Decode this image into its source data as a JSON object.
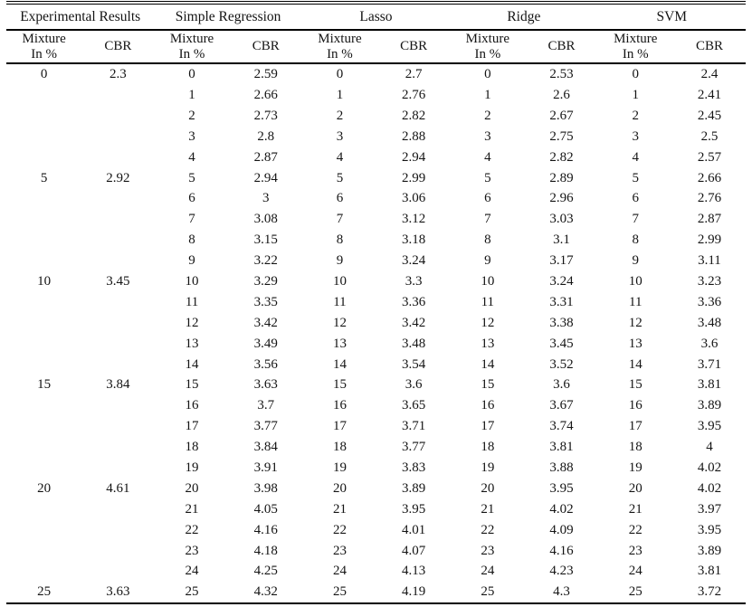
{
  "table": {
    "groups": [
      {
        "label": "Experimental Results"
      },
      {
        "label": "Simple Regression"
      },
      {
        "label": "Lasso"
      },
      {
        "label": "Ridge"
      },
      {
        "label": "SVM"
      }
    ],
    "subheader": {
      "mixture": "Mixture\nIn %",
      "cbr": "CBR"
    },
    "column_keys": [
      "experimental-mixture",
      "experimental-cbr",
      "simple-regression-mixture",
      "simple-regression-cbr",
      "lasso-mixture",
      "lasso-cbr",
      "ridge-mixture",
      "ridge-cbr",
      "svm-mixture",
      "svm-cbr"
    ],
    "rows": [
      [
        "0",
        "2.3",
        "0",
        "2.59",
        "0",
        "2.7",
        "0",
        "2.53",
        "0",
        "2.4"
      ],
      [
        "",
        "",
        "1",
        "2.66",
        "1",
        "2.76",
        "1",
        "2.6",
        "1",
        "2.41"
      ],
      [
        "",
        "",
        "2",
        "2.73",
        "2",
        "2.82",
        "2",
        "2.67",
        "2",
        "2.45"
      ],
      [
        "",
        "",
        "3",
        "2.8",
        "3",
        "2.88",
        "3",
        "2.75",
        "3",
        "2.5"
      ],
      [
        "",
        "",
        "4",
        "2.87",
        "4",
        "2.94",
        "4",
        "2.82",
        "4",
        "2.57"
      ],
      [
        "5",
        "2.92",
        "5",
        "2.94",
        "5",
        "2.99",
        "5",
        "2.89",
        "5",
        "2.66"
      ],
      [
        "",
        "",
        "6",
        "3",
        "6",
        "3.06",
        "6",
        "2.96",
        "6",
        "2.76"
      ],
      [
        "",
        "",
        "7",
        "3.08",
        "7",
        "3.12",
        "7",
        "3.03",
        "7",
        "2.87"
      ],
      [
        "",
        "",
        "8",
        "3.15",
        "8",
        "3.18",
        "8",
        "3.1",
        "8",
        "2.99"
      ],
      [
        "",
        "",
        "9",
        "3.22",
        "9",
        "3.24",
        "9",
        "3.17",
        "9",
        "3.11"
      ],
      [
        "10",
        "3.45",
        "10",
        "3.29",
        "10",
        "3.3",
        "10",
        "3.24",
        "10",
        "3.23"
      ],
      [
        "",
        "",
        "11",
        "3.35",
        "11",
        "3.36",
        "11",
        "3.31",
        "11",
        "3.36"
      ],
      [
        "",
        "",
        "12",
        "3.42",
        "12",
        "3.42",
        "12",
        "3.38",
        "12",
        "3.48"
      ],
      [
        "",
        "",
        "13",
        "3.49",
        "13",
        "3.48",
        "13",
        "3.45",
        "13",
        "3.6"
      ],
      [
        "",
        "",
        "14",
        "3.56",
        "14",
        "3.54",
        "14",
        "3.52",
        "14",
        "3.71"
      ],
      [
        "15",
        "3.84",
        "15",
        "3.63",
        "15",
        "3.6",
        "15",
        "3.6",
        "15",
        "3.81"
      ],
      [
        "",
        "",
        "16",
        "3.7",
        "16",
        "3.65",
        "16",
        "3.67",
        "16",
        "3.89"
      ],
      [
        "",
        "",
        "17",
        "3.77",
        "17",
        "3.71",
        "17",
        "3.74",
        "17",
        "3.95"
      ],
      [
        "",
        "",
        "18",
        "3.84",
        "18",
        "3.77",
        "18",
        "3.81",
        "18",
        "4"
      ],
      [
        "",
        "",
        "19",
        "3.91",
        "19",
        "3.83",
        "19",
        "3.88",
        "19",
        "4.02"
      ],
      [
        "20",
        "4.61",
        "20",
        "3.98",
        "20",
        "3.89",
        "20",
        "3.95",
        "20",
        "4.02"
      ],
      [
        "",
        "",
        "21",
        "4.05",
        "21",
        "3.95",
        "21",
        "4.02",
        "21",
        "3.97"
      ],
      [
        "",
        "",
        "22",
        "4.16",
        "22",
        "4.01",
        "22",
        "4.09",
        "22",
        "3.95"
      ],
      [
        "",
        "",
        "23",
        "4.18",
        "23",
        "4.07",
        "23",
        "4.16",
        "23",
        "3.89"
      ],
      [
        "",
        "",
        "24",
        "4.25",
        "24",
        "4.13",
        "24",
        "4.23",
        "24",
        "3.81"
      ],
      [
        "25",
        "3.63",
        "25",
        "4.32",
        "25",
        "4.19",
        "25",
        "4.3",
        "25",
        "3.72"
      ]
    ],
    "colors": {
      "rule": "#000000",
      "text": "#141414",
      "background": "#ffffff"
    }
  }
}
